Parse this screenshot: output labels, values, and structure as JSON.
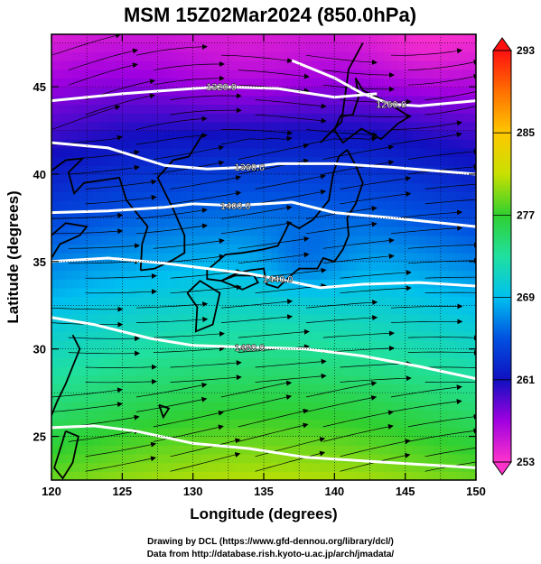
{
  "chart_data": {
    "type": "heatmap",
    "title": "MSM 15Z02Mar2024 (850.0hPa)",
    "xlabel": "Longitude (degrees)",
    "ylabel": "Latitude  (degrees)",
    "xlim": [
      120,
      150
    ],
    "ylim": [
      22.5,
      48
    ],
    "x_ticks": [
      120,
      125,
      130,
      135,
      140,
      145,
      150
    ],
    "y_ticks": [
      25,
      30,
      35,
      40,
      45
    ],
    "colorbar": {
      "min": 253,
      "max": 293,
      "ticks": [
        253,
        261,
        269,
        277,
        285,
        293
      ],
      "colors": [
        "#ff33cc",
        "#a000e0",
        "#1010c0",
        "#0050e0",
        "#00c0f0",
        "#20e0a0",
        "#30d030",
        "#c8e000",
        "#ffc800",
        "#ff7000",
        "#ff1010"
      ]
    },
    "contours": [
      {
        "label": "1320.0",
        "lat_at_lon": [
          [
            120,
            44.2
          ],
          [
            125,
            44.6
          ],
          [
            130,
            44.9
          ],
          [
            132,
            45.0
          ],
          [
            136,
            44.9
          ],
          [
            140,
            44.4
          ],
          [
            143,
            44.6
          ]
        ]
      },
      {
        "label": "1260.0",
        "lat_at_lon": [
          [
            137,
            46.5
          ],
          [
            140,
            45.5
          ],
          [
            142,
            44.6
          ],
          [
            144,
            44.0
          ],
          [
            146,
            43.9
          ],
          [
            150,
            44.2
          ]
        ]
      },
      {
        "label": "1360.0",
        "lat_at_lon": [
          [
            120,
            41.8
          ],
          [
            124,
            41.5
          ],
          [
            128,
            40.5
          ],
          [
            131,
            40.3
          ],
          [
            134,
            40.4
          ],
          [
            136,
            40.6
          ],
          [
            140,
            40.6
          ],
          [
            144,
            40.4
          ],
          [
            150,
            40.0
          ]
        ]
      },
      {
        "label": "1400.0",
        "lat_at_lon": [
          [
            120,
            37.8
          ],
          [
            124,
            37.9
          ],
          [
            128,
            38.1
          ],
          [
            130,
            38.3
          ],
          [
            133,
            38.2
          ],
          [
            137,
            38.4
          ],
          [
            140,
            37.8
          ],
          [
            144,
            37.5
          ],
          [
            150,
            37.0
          ]
        ]
      },
      {
        "label": "1440.0",
        "lat_at_lon": [
          [
            120,
            35.0
          ],
          [
            124,
            35.2
          ],
          [
            128,
            34.9
          ],
          [
            131,
            34.6
          ],
          [
            134,
            34.3
          ],
          [
            136,
            34.0
          ],
          [
            139,
            33.5
          ],
          [
            142,
            33.7
          ],
          [
            146,
            33.8
          ],
          [
            150,
            33.6
          ]
        ]
      },
      {
        "label": "1480.0",
        "lat_at_lon": [
          [
            120,
            31.8
          ],
          [
            123,
            31.4
          ],
          [
            127,
            30.6
          ],
          [
            130,
            30.2
          ],
          [
            134,
            30.1
          ],
          [
            138,
            30.0
          ],
          [
            142,
            29.6
          ],
          [
            146,
            29.0
          ],
          [
            150,
            28.3
          ]
        ]
      },
      {
        "label": "",
        "lat_at_lon": [
          [
            120,
            25.5
          ],
          [
            123,
            25.6
          ],
          [
            126,
            25.3
          ],
          [
            130,
            24.6
          ],
          [
            134,
            24.3
          ],
          [
            138,
            23.8
          ],
          [
            142,
            23.6
          ],
          [
            146,
            23.4
          ],
          [
            150,
            23.2
          ]
        ]
      }
    ]
  },
  "credits": {
    "line1": "Drawing by DCL (https://www.gfd-dennou.org/library/dcl/)",
    "line2": "Data from http://database.rish.kyoto-u.ac.jp/arch/jmadata/"
  }
}
